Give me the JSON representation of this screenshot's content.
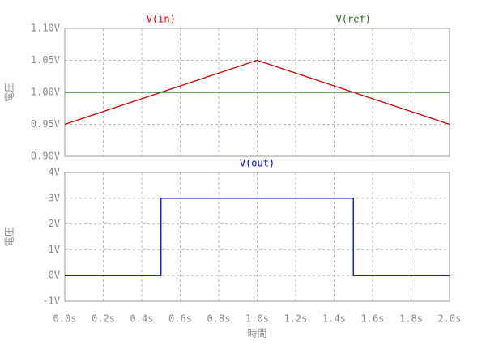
{
  "chart_data": [
    {
      "type": "line",
      "ylabel": "電圧",
      "x": [
        0,
        1.0,
        2.0
      ],
      "series": [
        {
          "name": "V(in)",
          "color": "#d00000",
          "values": [
            0.95,
            1.05,
            0.95
          ]
        },
        {
          "name": "V(ref)",
          "color": "#2e6b1f",
          "values": [
            1.0,
            1.0,
            1.0
          ]
        }
      ],
      "xlim": [
        0,
        2.0
      ],
      "xticks": [
        0,
        0.2,
        0.4,
        0.6,
        0.8,
        1.0,
        1.2,
        1.4,
        1.6,
        1.8,
        2.0
      ],
      "ylim": [
        0.9,
        1.1
      ],
      "yticks": [
        {
          "value": 0.9,
          "label": "0.90V"
        },
        {
          "value": 0.95,
          "label": "0.95V"
        },
        {
          "value": 1.0,
          "label": "1.00V"
        },
        {
          "value": 1.05,
          "label": "1.05V"
        },
        {
          "value": 1.1,
          "label": "1.10V"
        }
      ],
      "grid": true
    },
    {
      "type": "line",
      "ylabel": "電圧",
      "xlabel": "時間",
      "x": [
        0,
        0.5,
        0.5,
        1.5,
        1.5,
        2.0
      ],
      "series": [
        {
          "name": "V(out)",
          "color": "#0000cc",
          "values": [
            0,
            0,
            3,
            3,
            0,
            0
          ]
        }
      ],
      "xlim": [
        0,
        2.0
      ],
      "xticks": [
        {
          "value": 0,
          "label": "0.0s"
        },
        {
          "value": 0.2,
          "label": "0.2s"
        },
        {
          "value": 0.4,
          "label": "0.4s"
        },
        {
          "value": 0.6,
          "label": "0.6s"
        },
        {
          "value": 0.8,
          "label": "0.8s"
        },
        {
          "value": 1.0,
          "label": "1.0s"
        },
        {
          "value": 1.2,
          "label": "1.2s"
        },
        {
          "value": 1.4,
          "label": "1.4s"
        },
        {
          "value": 1.6,
          "label": "1.6s"
        },
        {
          "value": 1.8,
          "label": "1.8s"
        },
        {
          "value": 2.0,
          "label": "2.0s"
        }
      ],
      "ylim": [
        -1,
        4
      ],
      "yticks": [
        {
          "value": -1,
          "label": "-1V"
        },
        {
          "value": 0,
          "label": "0V"
        },
        {
          "value": 1,
          "label": "1V"
        },
        {
          "value": 2,
          "label": "2V"
        },
        {
          "value": 3,
          "label": "3V"
        },
        {
          "value": 4,
          "label": "4V"
        }
      ],
      "grid": true
    }
  ]
}
